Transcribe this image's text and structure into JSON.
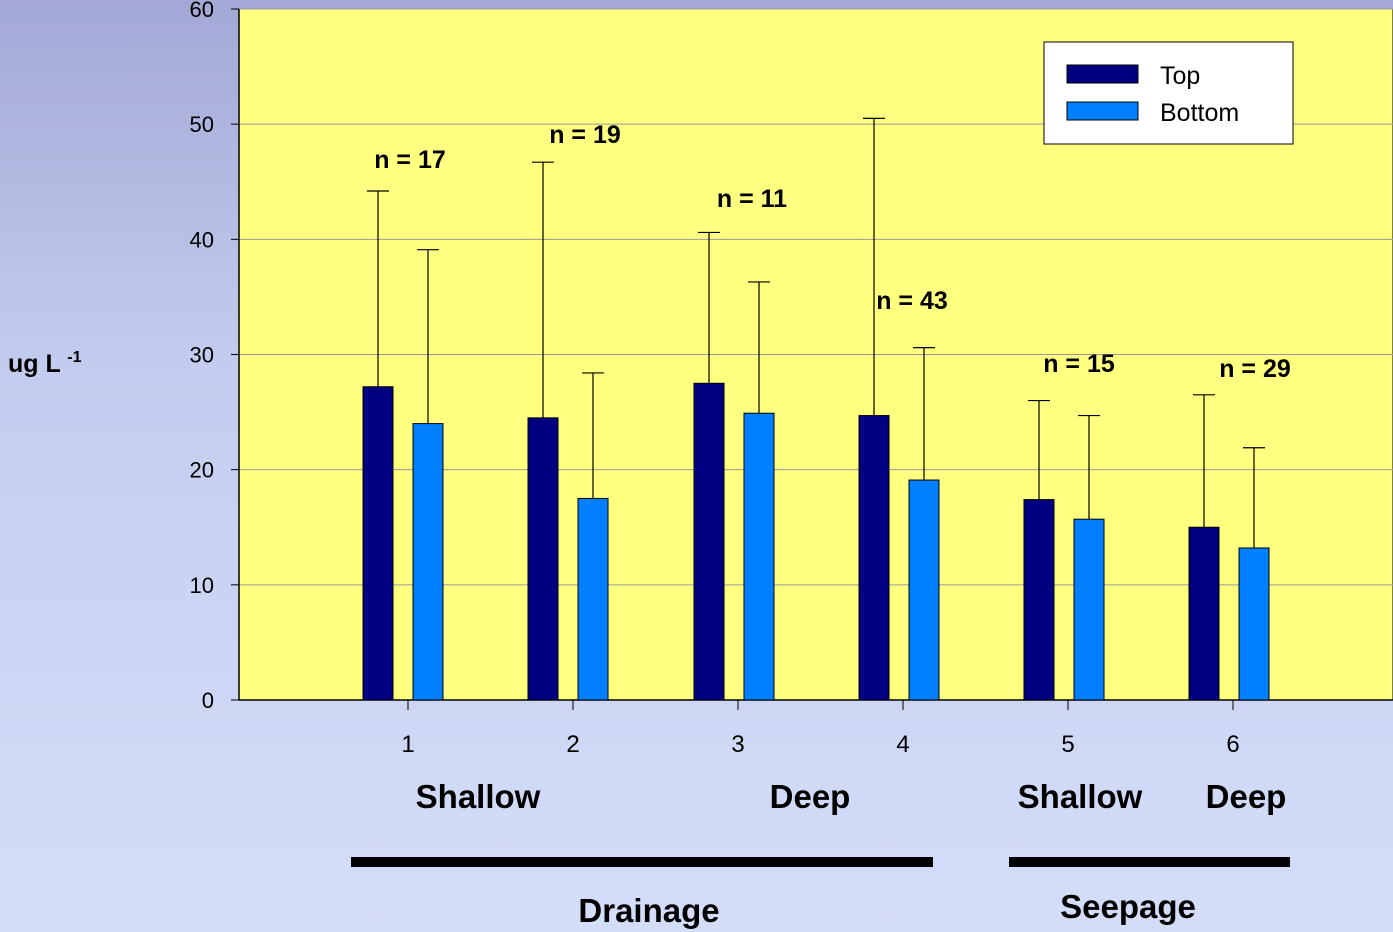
{
  "chart_data": {
    "type": "bar",
    "categories": [
      "1",
      "2",
      "3",
      "4",
      "5",
      "6"
    ],
    "series": [
      {
        "name": "Top",
        "color": "#000080",
        "values": [
          27.2,
          24.5,
          27.5,
          24.7,
          17.4,
          15.0
        ],
        "error_upper": [
          44.2,
          46.7,
          40.6,
          50.5,
          26.0,
          26.5
        ]
      },
      {
        "name": "Bottom",
        "color": "#0080ff",
        "values": [
          24.0,
          17.5,
          24.9,
          19.1,
          15.7,
          13.2
        ],
        "error_upper": [
          39.1,
          28.4,
          36.3,
          30.6,
          24.7,
          21.9
        ]
      }
    ],
    "n_labels": [
      {
        "text": "n = 17",
        "category": 1
      },
      {
        "text": "n = 19",
        "category": 2
      },
      {
        "text": "n = 11",
        "category": 3
      },
      {
        "text": "n = 43",
        "category": 4
      },
      {
        "text": "n = 15",
        "category": 5
      },
      {
        "text": "n = 29",
        "category": 6
      }
    ],
    "ylabel": "ug L",
    "ylabel_superscript": "-1",
    "ylim": [
      0,
      60
    ],
    "yticks": [
      0,
      10,
      20,
      30,
      40,
      50,
      60
    ],
    "grid": true,
    "plot_background": "#ffff80",
    "legend_position": "top-right",
    "depth_labels": [
      {
        "text": "Shallow"
      },
      {
        "text": "Deep"
      },
      {
        "text": "Shallow"
      },
      {
        "text": "Deep"
      }
    ],
    "group_labels": [
      {
        "text": "Drainage"
      },
      {
        "text": "Seepage"
      }
    ]
  }
}
